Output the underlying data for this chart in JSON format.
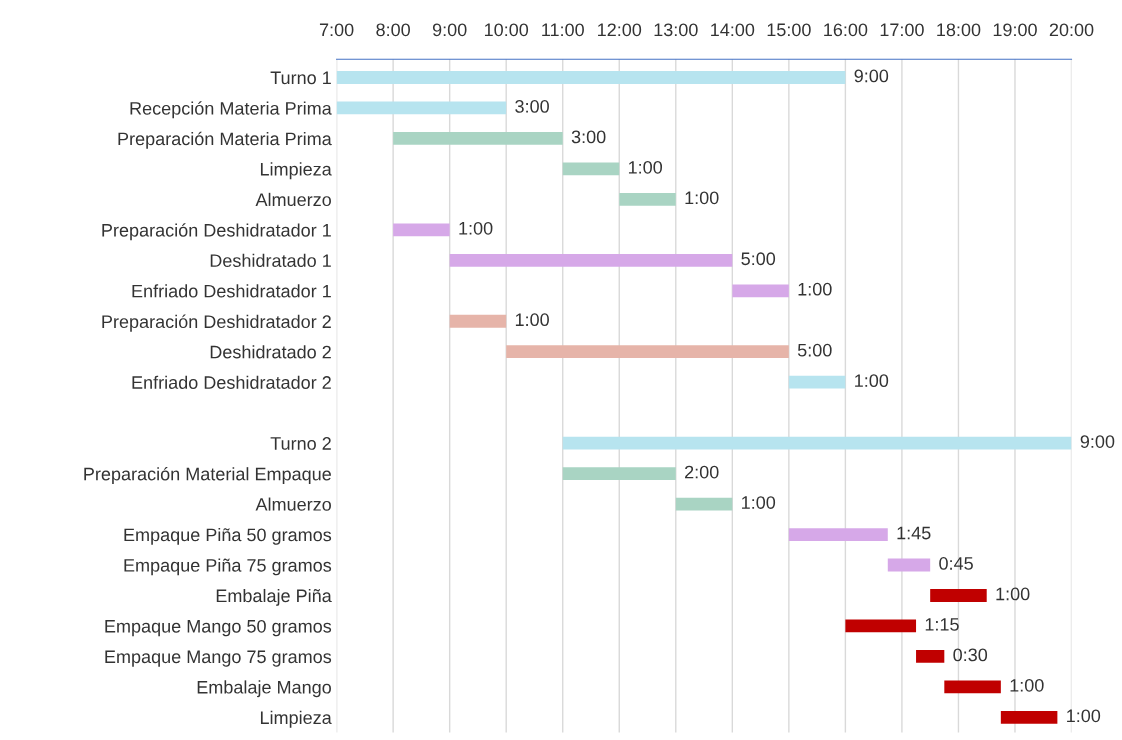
{
  "chart_data": {
    "type": "bar",
    "orientation": "horizontal",
    "categories": [
      "Turno 1",
      "Recepción Materia Prima",
      "Preparación Materia Prima",
      "Limpieza",
      "Almuerzo",
      "Preparación Deshidratador 1",
      "Deshidratado 1",
      "Enfriado Deshidratador 1",
      "Preparación Deshidratador 2",
      "Deshidratado 2",
      "Enfriado Deshidratador 2",
      null,
      "Turno 2",
      "Preparación Material Empaque",
      "Almuerzo",
      "Empaque Piña 50 gramos",
      "Empaque Piña 75 gramos",
      "Embalaje Piña",
      "Empaque Mango 50 gramos",
      "Empaque Mango 75 gramos",
      "Embalaje Mango",
      "Limpieza"
    ],
    "base": [
      7,
      7,
      8,
      11,
      12,
      8,
      9,
      14,
      9,
      10,
      15,
      null,
      11,
      11,
      13,
      15,
      16.75,
      17.5,
      16,
      17.25,
      17.75,
      18.75
    ],
    "values": [
      9,
      3,
      3,
      1,
      1,
      1,
      5,
      1,
      1,
      5,
      1,
      null,
      9,
      2,
      1,
      1.75,
      0.75,
      1,
      1.25,
      0.5,
      1,
      1
    ],
    "value_labels": [
      "9:00",
      "3:00",
      "3:00",
      "1:00",
      "1:00",
      "1:00",
      "5:00",
      "1:00",
      "1:00",
      "5:00",
      "1:00",
      null,
      "9:00",
      "2:00",
      "1:00",
      "1:45",
      "0:45",
      "1:00",
      "1:15",
      "0:30",
      "1:00",
      "1:00"
    ],
    "colors": [
      "#b7e4ef",
      "#b7e4ef",
      "#a9d4c3",
      "#a9d4c3",
      "#a9d4c3",
      "#d6a8e8",
      "#d6a8e8",
      "#d6a8e8",
      "#e6b4a9",
      "#e6b4a9",
      "#b7e4ef",
      null,
      "#b7e4ef",
      "#a9d4c3",
      "#a9d4c3",
      "#d6a8e8",
      "#d6a8e8",
      "#c00000",
      "#c00000",
      "#c00000",
      "#c00000",
      "#c00000"
    ],
    "xlim": [
      7,
      20
    ],
    "xticks": [
      {
        "value": 7,
        "label": "7:00"
      },
      {
        "value": 8,
        "label": "8:00"
      },
      {
        "value": 9,
        "label": "9:00"
      },
      {
        "value": 10,
        "label": "10:00"
      },
      {
        "value": 11,
        "label": "11:00"
      },
      {
        "value": 12,
        "label": "12:00"
      },
      {
        "value": 13,
        "label": "13:00"
      },
      {
        "value": 14,
        "label": "14:00"
      },
      {
        "value": 15,
        "label": "15:00"
      },
      {
        "value": 16,
        "label": "16:00"
      },
      {
        "value": 17,
        "label": "17:00"
      },
      {
        "value": 18,
        "label": "18:00"
      },
      {
        "value": 19,
        "label": "19:00"
      },
      {
        "value": 20,
        "label": "20:00"
      }
    ],
    "grid": "x",
    "legend": false
  }
}
